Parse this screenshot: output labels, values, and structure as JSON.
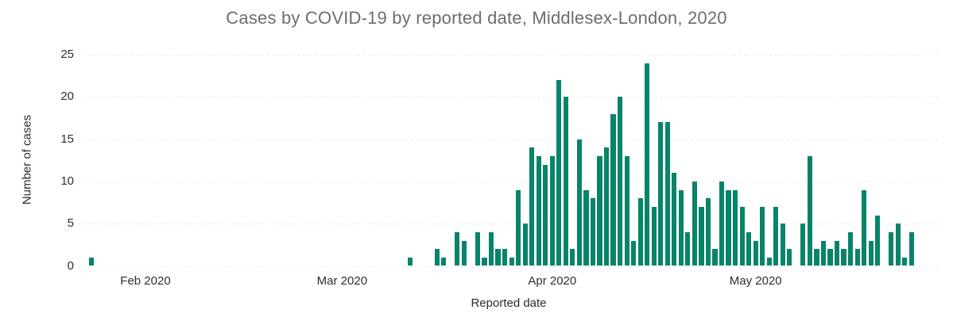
{
  "chart_data": {
    "type": "bar",
    "title": "Cases by COVID-19 by reported date, Middlesex-London, 2020",
    "xlabel": "Reported date",
    "ylabel": "Number of cases",
    "ylim": [
      0,
      25
    ],
    "y_ticks": [
      0,
      5,
      10,
      15,
      20,
      25
    ],
    "x_ticks": [
      {
        "label": "Feb 2020",
        "date": "2020-02-01"
      },
      {
        "label": "Mar 2020",
        "date": "2020-03-01"
      },
      {
        "label": "Apr 2020",
        "date": "2020-04-01"
      },
      {
        "label": "May 2020",
        "date": "2020-05-01"
      }
    ],
    "x_range": [
      "2020-01-22",
      "2020-05-28"
    ],
    "grid": "horizontal-dotted",
    "legend": "none",
    "series_name": "Number of cases",
    "points": [
      [
        "2020-01-24",
        1
      ],
      [
        "2020-03-11",
        1
      ],
      [
        "2020-03-15",
        2
      ],
      [
        "2020-03-16",
        1
      ],
      [
        "2020-03-18",
        4
      ],
      [
        "2020-03-19",
        3
      ],
      [
        "2020-03-21",
        4
      ],
      [
        "2020-03-22",
        1
      ],
      [
        "2020-03-23",
        4
      ],
      [
        "2020-03-24",
        2
      ],
      [
        "2020-03-25",
        2
      ],
      [
        "2020-03-26",
        1
      ],
      [
        "2020-03-27",
        9
      ],
      [
        "2020-03-28",
        5
      ],
      [
        "2020-03-29",
        14
      ],
      [
        "2020-03-30",
        13
      ],
      [
        "2020-03-31",
        12
      ],
      [
        "2020-04-01",
        13
      ],
      [
        "2020-04-02",
        22
      ],
      [
        "2020-04-03",
        20
      ],
      [
        "2020-04-04",
        2
      ],
      [
        "2020-04-05",
        15
      ],
      [
        "2020-04-06",
        9
      ],
      [
        "2020-04-07",
        8
      ],
      [
        "2020-04-08",
        13
      ],
      [
        "2020-04-09",
        14
      ],
      [
        "2020-04-10",
        18
      ],
      [
        "2020-04-11",
        20
      ],
      [
        "2020-04-12",
        13
      ],
      [
        "2020-04-13",
        3
      ],
      [
        "2020-04-14",
        8
      ],
      [
        "2020-04-15",
        24
      ],
      [
        "2020-04-16",
        7
      ],
      [
        "2020-04-17",
        17
      ],
      [
        "2020-04-18",
        17
      ],
      [
        "2020-04-19",
        11
      ],
      [
        "2020-04-20",
        9
      ],
      [
        "2020-04-21",
        4
      ],
      [
        "2020-04-22",
        10
      ],
      [
        "2020-04-23",
        7
      ],
      [
        "2020-04-24",
        8
      ],
      [
        "2020-04-25",
        2
      ],
      [
        "2020-04-26",
        10
      ],
      [
        "2020-04-27",
        9
      ],
      [
        "2020-04-28",
        9
      ],
      [
        "2020-04-29",
        7
      ],
      [
        "2020-04-30",
        4
      ],
      [
        "2020-05-01",
        3
      ],
      [
        "2020-05-02",
        7
      ],
      [
        "2020-05-03",
        1
      ],
      [
        "2020-05-04",
        7
      ],
      [
        "2020-05-05",
        5
      ],
      [
        "2020-05-06",
        2
      ],
      [
        "2020-05-08",
        5
      ],
      [
        "2020-05-09",
        13
      ],
      [
        "2020-05-10",
        2
      ],
      [
        "2020-05-11",
        3
      ],
      [
        "2020-05-12",
        2
      ],
      [
        "2020-05-13",
        3
      ],
      [
        "2020-05-14",
        2
      ],
      [
        "2020-05-15",
        4
      ],
      [
        "2020-05-16",
        2
      ],
      [
        "2020-05-17",
        9
      ],
      [
        "2020-05-18",
        3
      ],
      [
        "2020-05-19",
        6
      ],
      [
        "2020-05-21",
        4
      ],
      [
        "2020-05-22",
        5
      ],
      [
        "2020-05-23",
        1
      ],
      [
        "2020-05-24",
        4
      ]
    ],
    "colors": {
      "bar": "#078469",
      "gridline": "#cfcfcf",
      "title_text": "#6d6d6d",
      "axis_text": "#2f2f2f"
    }
  }
}
